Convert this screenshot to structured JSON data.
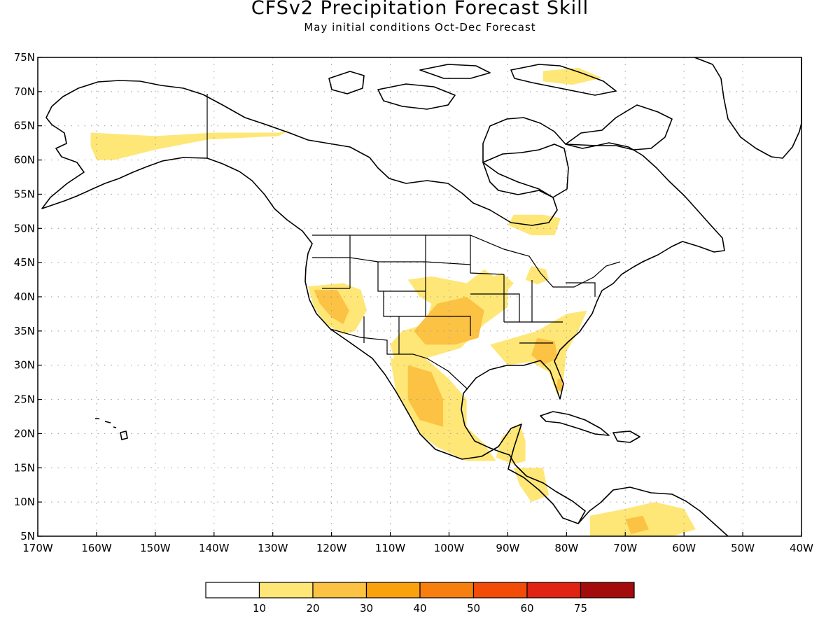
{
  "header": {
    "title": "CFSv2 Precipitation Forecast Skill",
    "subtitle": "May initial conditions  Oct-Dec Forecast"
  },
  "map": {
    "lat_range": [
      5,
      75
    ],
    "lon_range": [
      -170,
      -40
    ],
    "lat_ticks": [
      "75N",
      "70N",
      "65N",
      "60N",
      "55N",
      "50N",
      "45N",
      "40N",
      "35N",
      "30N",
      "25N",
      "20N",
      "15N",
      "10N",
      "5N"
    ],
    "lon_ticks": [
      "170W",
      "160W",
      "150W",
      "140W",
      "130W",
      "120W",
      "110W",
      "100W",
      "90W",
      "80W",
      "70W",
      "60W",
      "50W",
      "40W"
    ],
    "grid": "dotted",
    "skill_regions": [
      {
        "name": "alaska-south",
        "level": 1,
        "points": [
          [
            -161,
            64
          ],
          [
            -150,
            63.5
          ],
          [
            -140,
            64
          ],
          [
            -129,
            64
          ],
          [
            -127,
            64.5
          ],
          [
            -129,
            63.5
          ],
          [
            -141,
            63
          ],
          [
            -150,
            61.5
          ],
          [
            -157,
            60
          ],
          [
            -160,
            60
          ],
          [
            -161,
            62
          ]
        ]
      },
      {
        "name": "hudson-bay-south",
        "level": 1,
        "points": [
          [
            -89,
            52
          ],
          [
            -84,
            52
          ],
          [
            -81,
            51.5
          ],
          [
            -82,
            49
          ],
          [
            -86,
            49
          ],
          [
            -90,
            50.5
          ]
        ]
      },
      {
        "name": "california-nevada",
        "level": 1,
        "points": [
          [
            -124,
            41.5
          ],
          [
            -118,
            42
          ],
          [
            -115,
            41
          ],
          [
            -114,
            38
          ],
          [
            -116,
            35
          ],
          [
            -118,
            34.5
          ],
          [
            -121,
            36
          ],
          [
            -123,
            38.5
          ]
        ]
      },
      {
        "name": "california-nevada-core",
        "level": 2,
        "points": [
          [
            -123,
            41
          ],
          [
            -119,
            41
          ],
          [
            -117,
            38
          ],
          [
            -118,
            36
          ],
          [
            -120,
            37
          ],
          [
            -122,
            39
          ]
        ]
      },
      {
        "name": "great-plains",
        "level": 1,
        "points": [
          [
            -107,
            42.5
          ],
          [
            -103,
            43
          ],
          [
            -97,
            42
          ],
          [
            -94,
            44
          ],
          [
            -90,
            41.5
          ],
          [
            -90,
            38.5
          ],
          [
            -94,
            36
          ],
          [
            -98,
            32.5
          ],
          [
            -104,
            31
          ],
          [
            -109,
            30
          ],
          [
            -110,
            33
          ],
          [
            -108,
            35
          ],
          [
            -104,
            36
          ],
          [
            -103,
            39
          ],
          [
            -105,
            40
          ]
        ]
      },
      {
        "name": "central-core",
        "level": 2,
        "points": [
          [
            -102,
            39
          ],
          [
            -97,
            40
          ],
          [
            -94,
            38
          ],
          [
            -95,
            34
          ],
          [
            -99,
            33
          ],
          [
            -104,
            33
          ],
          [
            -106,
            35
          ]
        ]
      },
      {
        "name": "mexico",
        "level": 1,
        "points": [
          [
            -110,
            31
          ],
          [
            -104,
            31
          ],
          [
            -100,
            28
          ],
          [
            -97,
            25
          ],
          [
            -97,
            21
          ],
          [
            -94,
            18.5
          ],
          [
            -92,
            16
          ],
          [
            -97,
            16
          ],
          [
            -102,
            18
          ],
          [
            -105,
            20
          ],
          [
            -107,
            23
          ],
          [
            -109,
            26
          ]
        ]
      },
      {
        "name": "mexico-core",
        "level": 2,
        "points": [
          [
            -107,
            30
          ],
          [
            -103,
            29
          ],
          [
            -101,
            25
          ],
          [
            -101,
            21
          ],
          [
            -105,
            22
          ],
          [
            -107,
            25
          ]
        ]
      },
      {
        "name": "yucatan",
        "level": 1,
        "points": [
          [
            -91,
            19.5
          ],
          [
            -88,
            21.5
          ],
          [
            -87,
            19
          ],
          [
            -87,
            16
          ],
          [
            -89,
            15.5
          ],
          [
            -92,
            16.5
          ]
        ]
      },
      {
        "name": "southeast-us",
        "level": 1,
        "points": [
          [
            -93,
            33
          ],
          [
            -85,
            35
          ],
          [
            -80,
            37.5
          ],
          [
            -76.5,
            38
          ],
          [
            -78,
            35
          ],
          [
            -80,
            32
          ],
          [
            -80.5,
            28
          ],
          [
            -81.5,
            25.5
          ],
          [
            -83,
            29
          ],
          [
            -86,
            30.5
          ],
          [
            -90,
            30
          ]
        ]
      },
      {
        "name": "southeast-core",
        "level": 2,
        "points": [
          [
            -85,
            34
          ],
          [
            -82,
            33.5
          ],
          [
            -81.5,
            31
          ],
          [
            -84,
            30
          ],
          [
            -86,
            31.5
          ]
        ]
      },
      {
        "name": "florida-core",
        "level": 2,
        "points": [
          [
            -81.5,
            28
          ],
          [
            -80.6,
            28
          ],
          [
            -80.8,
            26
          ],
          [
            -81.7,
            26.5
          ]
        ]
      },
      {
        "name": "great-lakes",
        "level": 1,
        "points": [
          [
            -86,
            44.5
          ],
          [
            -83.5,
            44
          ],
          [
            -83,
            42.5
          ],
          [
            -85,
            41.8
          ],
          [
            -87,
            42.5
          ]
        ]
      },
      {
        "name": "iowa",
        "level": 1,
        "points": [
          [
            -95,
            42
          ],
          [
            -91,
            43.5
          ],
          [
            -89,
            42
          ],
          [
            -91,
            40
          ],
          [
            -95,
            40
          ]
        ]
      },
      {
        "name": "central-america",
        "level": 1,
        "points": [
          [
            -89,
            15
          ],
          [
            -84,
            15
          ],
          [
            -83,
            11
          ],
          [
            -86,
            10
          ],
          [
            -88,
            12.5
          ]
        ]
      },
      {
        "name": "south-america-north",
        "level": 1,
        "points": [
          [
            -76,
            8
          ],
          [
            -70,
            9
          ],
          [
            -65,
            10
          ],
          [
            -60,
            9
          ],
          [
            -58,
            6
          ],
          [
            -62,
            5
          ],
          [
            -70,
            5
          ],
          [
            -76,
            5
          ]
        ]
      },
      {
        "name": "south-america-core",
        "level": 2,
        "points": [
          [
            -70,
            7.5
          ],
          [
            -67,
            8
          ],
          [
            -66,
            6
          ],
          [
            -69,
            5.3
          ]
        ]
      },
      {
        "name": "greenland-north",
        "level": 1,
        "points": [
          [
            -84,
            73
          ],
          [
            -78,
            73.5
          ],
          [
            -74,
            72
          ],
          [
            -79,
            71
          ],
          [
            -84,
            71.5
          ]
        ]
      }
    ]
  },
  "colorbar": {
    "labels": [
      "10",
      "20",
      "30",
      "40",
      "50",
      "60",
      "75"
    ],
    "colors": [
      "#ffffff",
      "#fee777",
      "#fcc243",
      "#faa20e",
      "#f77f0f",
      "#f34c09",
      "#e02312",
      "#a40c0c"
    ]
  }
}
